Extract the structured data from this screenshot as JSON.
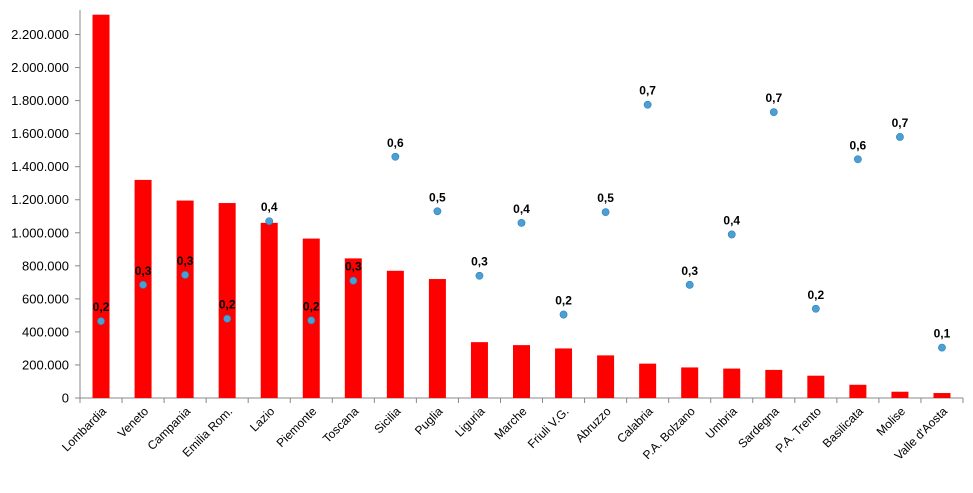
{
  "chart_data": {
    "type": "bar",
    "title": "",
    "xlabel": "",
    "ylabel": "",
    "ylim": [
      0,
      2300000
    ],
    "yticks": [
      0,
      200000,
      400000,
      600000,
      800000,
      1000000,
      1200000,
      1400000,
      1600000,
      1800000,
      2000000,
      2200000
    ],
    "ytick_labels": [
      "0",
      "200.000",
      "400.000",
      "600.000",
      "800.000",
      "1.000.000",
      "1.200.000",
      "1.400.000",
      "1.600.000",
      "1.800.000",
      "2.000.000",
      "2.200.000"
    ],
    "grid": false,
    "legend": "none",
    "categories": [
      "Lombardia",
      "Veneto",
      "Campania",
      "Emilia Rom.",
      "Lazio",
      "Piemonte",
      "Toscana",
      "Sicilia",
      "Puglia",
      "Liguria",
      "Marche",
      "Friuli V.G.",
      "Abruzzo",
      "Calabria",
      "P.A. Bolzano",
      "Umbria",
      "Sardegna",
      "P.A. Trento",
      "Basilicata",
      "Molise",
      "Valle d'Aosta"
    ],
    "series": [
      {
        "type": "bar",
        "color": "#ff0000",
        "values": [
          2320000,
          1320000,
          1195000,
          1180000,
          1060000,
          965000,
          845000,
          770000,
          720000,
          338000,
          320000,
          300000,
          258000,
          208000,
          185000,
          178000,
          170000,
          135000,
          80000,
          38000,
          30000
        ]
      },
      {
        "type": "scatter",
        "color": "#4a9fd5",
        "values": [
          0.2,
          0.3,
          0.3,
          0.2,
          0.4,
          0.2,
          0.3,
          0.6,
          0.5,
          0.3,
          0.4,
          0.2,
          0.5,
          0.7,
          0.3,
          0.4,
          0.7,
          0.2,
          0.6,
          0.7,
          0.1
        ],
        "labels": [
          "0,2",
          "0,3",
          "0,3",
          "0,2",
          "0,4",
          "0,2",
          "0,3",
          "0,6",
          "0,5",
          "0,3",
          "0,4",
          "0,2",
          "0,5",
          "0,7",
          "0,3",
          "0,4",
          "0,7",
          "0,2",
          "0,6",
          "0,7",
          "0,1"
        ],
        "plotted_at": [
          465000,
          685000,
          745000,
          480000,
          1070000,
          470000,
          710000,
          1460000,
          1130000,
          740000,
          1060000,
          505000,
          1125000,
          1775000,
          685000,
          990000,
          1730000,
          540000,
          1445000,
          1580000,
          305000
        ]
      }
    ]
  }
}
